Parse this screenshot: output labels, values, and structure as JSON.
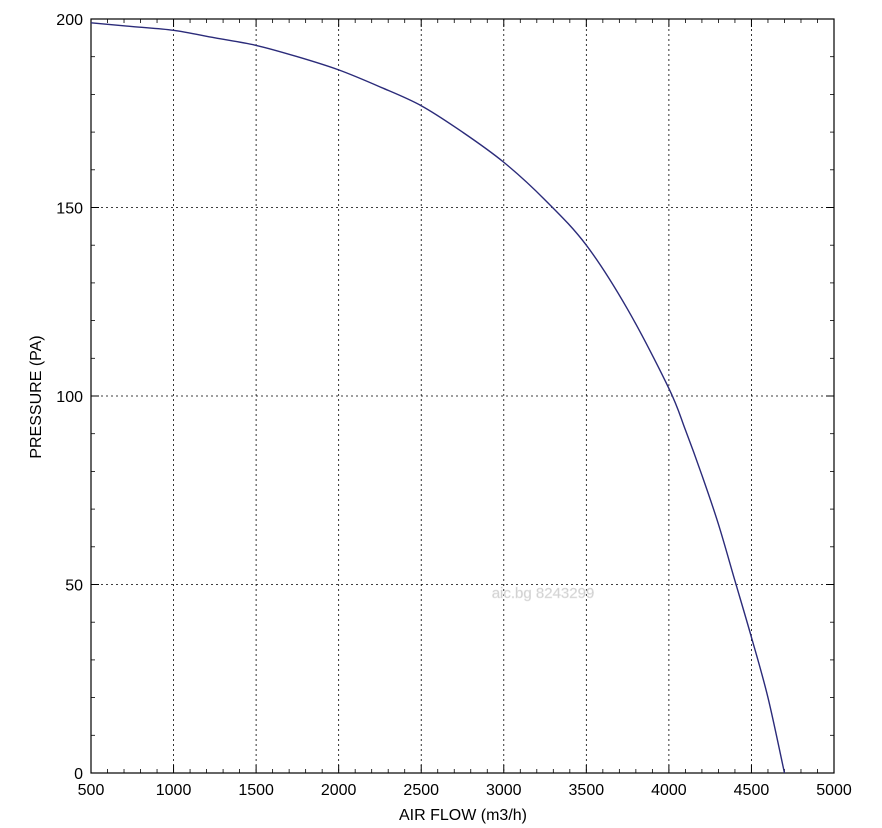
{
  "chart_data": {
    "type": "line",
    "title": "",
    "xlabel": "AIR FLOW (m3/h)",
    "ylabel": "PRESSURE (PA)",
    "xlim": [
      500,
      5000
    ],
    "ylim": [
      0,
      200
    ],
    "xticks": [
      500,
      1000,
      1500,
      2000,
      2500,
      3000,
      3500,
      4000,
      4500,
      5000
    ],
    "yticks": [
      0,
      50,
      100,
      150,
      200
    ],
    "grid": true,
    "watermark": "aic.bg 8243299",
    "line_color": "#2b2b7a",
    "series": [
      {
        "x": [
          500,
          750,
          1000,
          1250,
          1500,
          1750,
          2000,
          2250,
          2500,
          2750,
          3000,
          3250,
          3500,
          3750,
          4000,
          4100,
          4200,
          4300,
          4400,
          4500,
          4600,
          4700
        ],
        "y": [
          199,
          198,
          197,
          195,
          193,
          190,
          186.5,
          182,
          177,
          170,
          162,
          152,
          140,
          123,
          102,
          91,
          79,
          66,
          51,
          36,
          20,
          0
        ]
      }
    ]
  }
}
